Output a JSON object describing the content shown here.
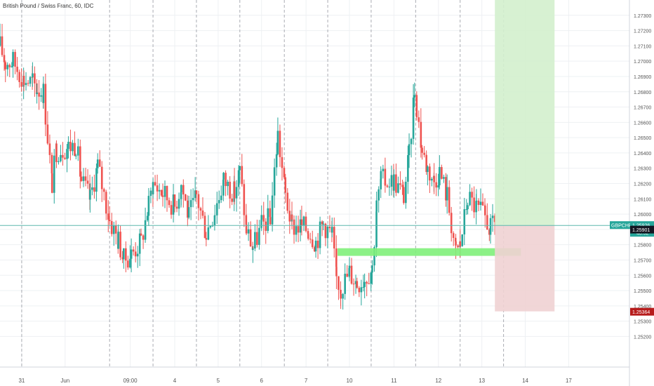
{
  "header": {
    "title": "British Pound / Swiss Franc, 60, IDC"
  },
  "colors": {
    "up": "#26a69a",
    "down": "#ef5350",
    "grid": "#eef0f3",
    "session": "#9598a1",
    "target_zone": "#d3efcd",
    "stop_zone": "#f0d1d3",
    "support_zone": "#7ff07a",
    "price_line": "#5db8ad",
    "axis_text": "#555555"
  },
  "chart_data": {
    "type": "candlestick",
    "symbol": "GBPCHF",
    "timeframe": "60",
    "ylim": [
      1.25,
      1.274
    ],
    "y_ticks": [
      "1.27300",
      "1.27200",
      "1.27100",
      "1.27000",
      "1.26900",
      "1.26800",
      "1.26700",
      "1.26600",
      "1.26500",
      "1.26400",
      "1.26300",
      "1.26200",
      "1.26100",
      "1.26000",
      "1.25900",
      "1.25800",
      "1.25700",
      "1.25600",
      "1.25500",
      "1.25400",
      "1.25300",
      "1.25200"
    ],
    "x_ticks": [
      "31",
      "Jun",
      "09:00",
      "4",
      "5",
      "6",
      "7",
      "10",
      "11",
      "12",
      "13",
      "14",
      "17"
    ],
    "x_tick_positions": [
      0,
      4,
      10,
      14.1,
      18.1,
      22.1,
      26.2,
      30.2,
      34.3,
      38.4,
      42.4,
      46.4,
      50.4
    ],
    "x_range": [
      -2,
      56
    ],
    "session_breaks": [
      0,
      8.1,
      12.1,
      16.1,
      20.1,
      24.2,
      28.2,
      32.2,
      36.3,
      40.4,
      44.4
    ],
    "price_labels": {
      "symbol_label": "GBPCHF",
      "last_price": "1.25926",
      "countdown": "48:52",
      "second_price": "1.25901",
      "stop_price": "1.25364"
    },
    "last_price": 1.25926,
    "second_price": 1.25901,
    "stop_price": 1.25364,
    "support_zone": {
      "x_start": 29.1,
      "x_end": 46.0,
      "y_low": 1.25727,
      "y_high": 1.25777
    },
    "position": {
      "x_start": 43.6,
      "x_end": 49.1,
      "entry": 1.25926,
      "target": 1.274,
      "stop": 1.25364
    },
    "ohlc_points": [
      [
        -2.0,
        1.271
      ],
      [
        -1.5,
        1.2699
      ],
      [
        -0.8,
        1.27
      ],
      [
        0.2,
        1.2688
      ],
      [
        1.0,
        1.2686
      ],
      [
        1.4,
        1.2682
      ],
      [
        2.0,
        1.268
      ],
      [
        2.8,
        1.262
      ],
      [
        3.2,
        1.2642
      ],
      [
        4.3,
        1.2644
      ],
      [
        5.0,
        1.2646
      ],
      [
        5.5,
        1.2622
      ],
      [
        6.3,
        1.261
      ],
      [
        7.0,
        1.2632
      ],
      [
        8.1,
        1.2596
      ],
      [
        8.9,
        1.2583
      ],
      [
        9.4,
        1.257
      ],
      [
        10.1,
        1.2574
      ],
      [
        11.0,
        1.2582
      ],
      [
        11.7,
        1.2606
      ],
      [
        12.1,
        1.262
      ],
      [
        13.0,
        1.2614
      ],
      [
        14.1,
        1.2605
      ],
      [
        14.7,
        1.262
      ],
      [
        15.4,
        1.2598
      ],
      [
        16.1,
        1.2612
      ],
      [
        17.0,
        1.2588
      ],
      [
        17.8,
        1.2603
      ],
      [
        18.6,
        1.2622
      ],
      [
        19.6,
        1.2614
      ],
      [
        20.1,
        1.2628
      ],
      [
        20.7,
        1.259
      ],
      [
        21.3,
        1.2578
      ],
      [
        22.1,
        1.2592
      ],
      [
        22.9,
        1.2598
      ],
      [
        23.6,
        1.2652
      ],
      [
        24.3,
        1.2612
      ],
      [
        24.9,
        1.2592
      ],
      [
        25.8,
        1.2592
      ],
      [
        26.4,
        1.259
      ],
      [
        27.1,
        1.2582
      ],
      [
        27.8,
        1.2594
      ],
      [
        28.6,
        1.2586
      ],
      [
        29.0,
        1.2558
      ],
      [
        29.4,
        1.2552
      ],
      [
        30.2,
        1.2562
      ],
      [
        30.9,
        1.2555
      ],
      [
        31.6,
        1.2558
      ],
      [
        32.3,
        1.2565
      ],
      [
        32.7,
        1.2605
      ],
      [
        33.1,
        1.2622
      ],
      [
        34.3,
        1.2622
      ],
      [
        35.2,
        1.2612
      ],
      [
        35.7,
        1.2638
      ],
      [
        36.2,
        1.2682
      ],
      [
        36.9,
        1.2641
      ],
      [
        37.4,
        1.263
      ],
      [
        38.0,
        1.2622
      ],
      [
        38.5,
        1.2628
      ],
      [
        39.2,
        1.2612
      ],
      [
        40.0,
        1.2575
      ],
      [
        40.4,
        1.258
      ],
      [
        41.1,
        1.2611
      ],
      [
        41.9,
        1.2604
      ],
      [
        42.7,
        1.2598
      ],
      [
        43.2,
        1.259
      ],
      [
        43.6,
        1.2593
      ]
    ]
  }
}
